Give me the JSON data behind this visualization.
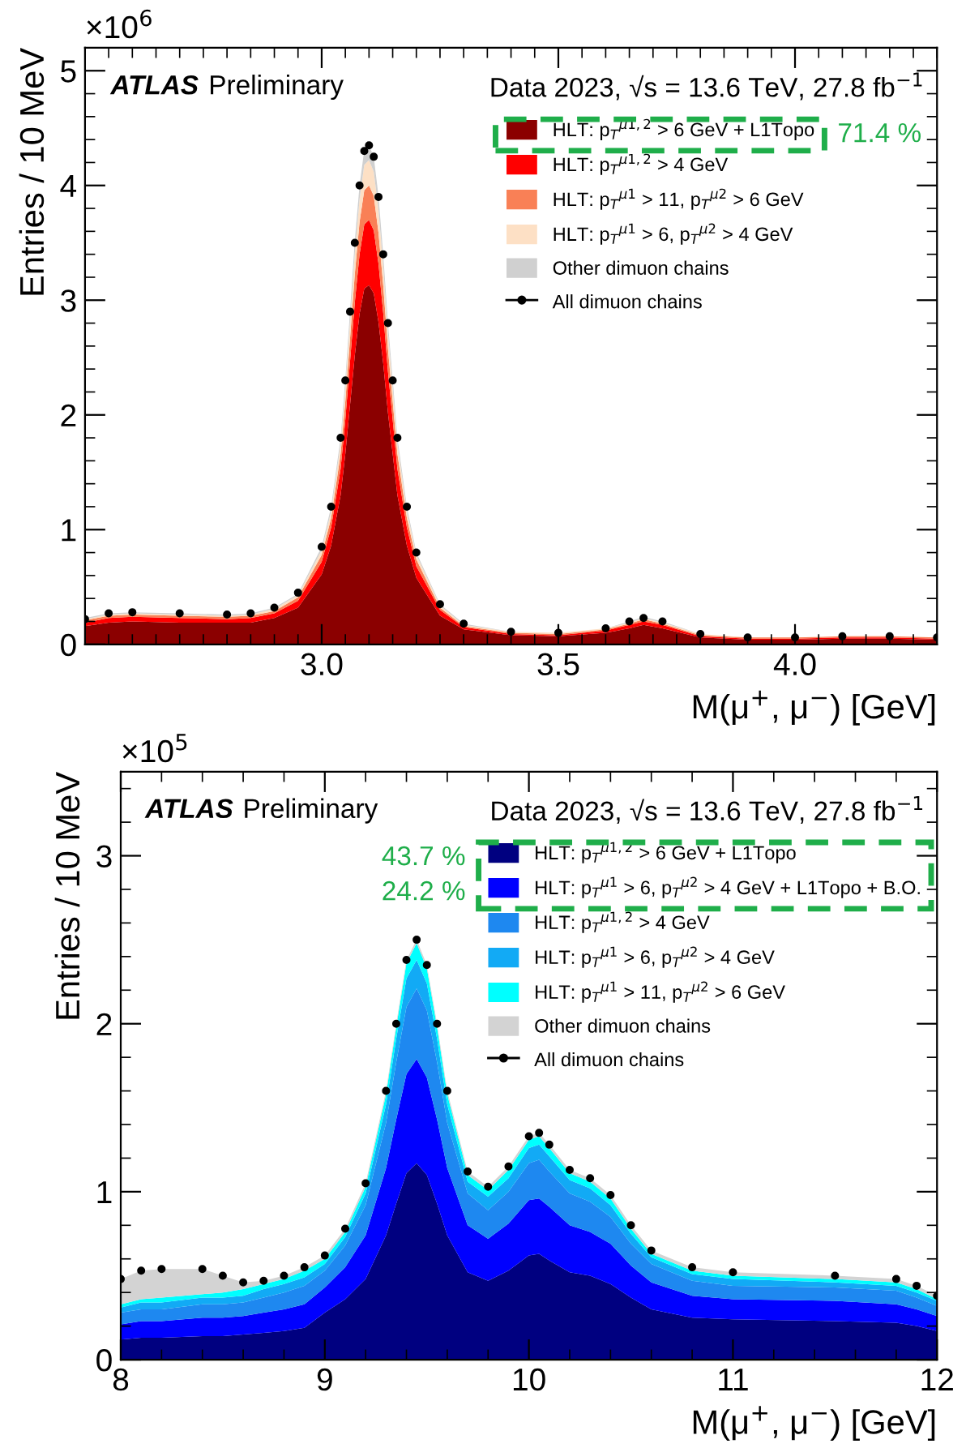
{
  "chart_data": [
    {
      "type": "area",
      "stacked": true,
      "xlabel": "M(μ$^{+}$, μ$^{−}$) [GeV]",
      "ylabel": "Entries / 10 MeV",
      "legend": "top right",
      "grid": false,
      "annotations": [
        "ATLAS",
        "Preliminary",
        "Data 2023, √s = 13.6 TeV, 27.8 fb$^{−1}$",
        "×10$^{6}$",
        "71.4 %"
      ],
      "xlim": [
        2.5,
        4.3
      ],
      "xticks": [
        {
          "value": 3.0,
          "label": "3.0"
        },
        {
          "value": 3.5,
          "label": "3.5"
        },
        {
          "value": 4.0,
          "label": "4.0"
        }
      ],
      "ylim": [
        0,
        5.2
      ],
      "yticks": [
        0,
        1,
        2,
        3,
        4,
        5
      ],
      "x": [
        2.5,
        2.55,
        2.6,
        2.7,
        2.8,
        2.85,
        2.9,
        2.95,
        3.0,
        3.02,
        3.04,
        3.05,
        3.06,
        3.07,
        3.08,
        3.09,
        3.1,
        3.11,
        3.12,
        3.13,
        3.14,
        3.15,
        3.16,
        3.18,
        3.2,
        3.25,
        3.3,
        3.4,
        3.5,
        3.6,
        3.65,
        3.68,
        3.72,
        3.8,
        3.9,
        4.0,
        4.1,
        4.2,
        4.3
      ],
      "series": [
        {
          "name": "HLT: p$_{T}$$^{μ1,2}$ > 6 GeV + L1Topo",
          "color": "#8b0000",
          "values": [
            0.16,
            0.19,
            0.2,
            0.19,
            0.19,
            0.19,
            0.23,
            0.32,
            0.61,
            0.86,
            1.3,
            1.66,
            2.09,
            2.52,
            2.88,
            3.1,
            3.13,
            3.06,
            2.81,
            2.45,
            2.02,
            1.66,
            1.3,
            0.86,
            0.58,
            0.25,
            0.13,
            0.08,
            0.07,
            0.1,
            0.14,
            0.17,
            0.14,
            0.06,
            0.04,
            0.04,
            0.05,
            0.05,
            0.04
          ]
        },
        {
          "name": "HLT: p$_{T}$$^{μ1,2}$ > 4 GeV",
          "color": "#ff0000",
          "values": [
            0.03,
            0.04,
            0.04,
            0.04,
            0.03,
            0.04,
            0.04,
            0.06,
            0.11,
            0.16,
            0.23,
            0.3,
            0.38,
            0.46,
            0.52,
            0.56,
            0.57,
            0.55,
            0.51,
            0.44,
            0.36,
            0.3,
            0.23,
            0.16,
            0.1,
            0.05,
            0.02,
            0.01,
            0.01,
            0.02,
            0.03,
            0.03,
            0.03,
            0.01,
            0.01,
            0.01,
            0.01,
            0.01,
            0.01
          ]
        },
        {
          "name": "HLT: p$_{T}$$^{μ1}$ > 11, p$_{T}$$^{μ2}$ > 6 GeV",
          "color": "#f98056",
          "values": [
            0.02,
            0.02,
            0.02,
            0.02,
            0.02,
            0.02,
            0.02,
            0.03,
            0.06,
            0.08,
            0.13,
            0.16,
            0.2,
            0.25,
            0.28,
            0.3,
            0.3,
            0.3,
            0.27,
            0.24,
            0.2,
            0.16,
            0.13,
            0.08,
            0.06,
            0.02,
            0.01,
            0.01,
            0.01,
            0.01,
            0.01,
            0.02,
            0.01,
            0.01,
            0.01,
            0.01,
            0.01,
            0.01,
            0.01
          ]
        },
        {
          "name": "HLT: p$_{T}$$^{μ1}$ > 6, p$_{T}$$^{μ2}$ > 4 GeV",
          "color": "#fde0c5",
          "values": [
            0.01,
            0.01,
            0.01,
            0.01,
            0.01,
            0.01,
            0.02,
            0.02,
            0.04,
            0.06,
            0.09,
            0.12,
            0.15,
            0.18,
            0.2,
            0.22,
            0.22,
            0.21,
            0.2,
            0.17,
            0.14,
            0.12,
            0.09,
            0.06,
            0.04,
            0.02,
            0.01,
            0.01,
            0.01,
            0.01,
            0.01,
            0.01,
            0.01,
            0.01,
            0,
            0,
            0,
            0,
            0
          ]
        },
        {
          "name": "Other dimuon chains",
          "color": "#d0d0d0",
          "values": [
            0.01,
            0.01,
            0.01,
            0.01,
            0.01,
            0.01,
            0.01,
            0.01,
            0.03,
            0.04,
            0.05,
            0.07,
            0.09,
            0.11,
            0.12,
            0.13,
            0.13,
            0.13,
            0.12,
            0.1,
            0.08,
            0.07,
            0.05,
            0.04,
            0.02,
            0.01,
            0.01,
            0,
            0,
            0,
            0.01,
            0.01,
            0.01,
            0,
            0,
            0,
            0,
            0,
            0
          ]
        },
        {
          "name": "All dimuon chains",
          "type": "scatter",
          "marker": "circle",
          "color": "#000000",
          "values": [
            0.22,
            0.27,
            0.28,
            0.27,
            0.26,
            0.27,
            0.32,
            0.45,
            0.85,
            1.2,
            1.8,
            2.3,
            2.9,
            3.5,
            4.0,
            4.3,
            4.35,
            4.25,
            3.9,
            3.4,
            2.8,
            2.3,
            1.8,
            1.2,
            0.8,
            0.35,
            0.18,
            0.11,
            0.1,
            0.14,
            0.2,
            0.23,
            0.2,
            0.09,
            0.06,
            0.06,
            0.07,
            0.07,
            0.06
          ]
        }
      ]
    },
    {
      "type": "area",
      "stacked": true,
      "xlabel": "M(μ$^{+}$, μ$^{−}$) [GeV]",
      "ylabel": "Entries / 10 MeV",
      "legend": "top right",
      "grid": false,
      "annotations": [
        "ATLAS",
        "Preliminary",
        "Data 2023, √s = 13.6 TeV, 27.8 fb$^{−1}$",
        "×10$^{5}$",
        "43.7 %",
        "24.2 %"
      ],
      "xlim": [
        8,
        12
      ],
      "xticks": [
        8,
        9,
        10,
        11,
        12
      ],
      "ylim": [
        0,
        3.5
      ],
      "yticks": [
        0,
        1,
        2,
        3
      ],
      "x": [
        8.0,
        8.1,
        8.2,
        8.4,
        8.5,
        8.6,
        8.7,
        8.8,
        8.9,
        9.0,
        9.1,
        9.2,
        9.3,
        9.35,
        9.4,
        9.45,
        9.5,
        9.55,
        9.6,
        9.7,
        9.8,
        9.9,
        10.0,
        10.05,
        10.1,
        10.2,
        10.3,
        10.4,
        10.5,
        10.6,
        10.8,
        11.0,
        11.5,
        11.8,
        11.9,
        12.0
      ],
      "series": [
        {
          "name": "HLT: p$_{T}$$^{μ1,2}$ > 6 GeV + L1Topo",
          "color": "#000080",
          "values": [
            0.12,
            0.13,
            0.13,
            0.14,
            0.14,
            0.15,
            0.16,
            0.17,
            0.19,
            0.28,
            0.36,
            0.48,
            0.74,
            0.93,
            1.11,
            1.17,
            1.1,
            0.93,
            0.74,
            0.52,
            0.47,
            0.53,
            0.62,
            0.63,
            0.59,
            0.52,
            0.5,
            0.45,
            0.37,
            0.3,
            0.25,
            0.24,
            0.23,
            0.22,
            0.2,
            0.17
          ]
        },
        {
          "name": "HLT: p$_{T}$$^{μ1}$ > 6, p$_{T}$$^{μ2}$ > 4 GeV + L1Topo + B.O.",
          "color": "#0000ff",
          "values": [
            0.09,
            0.1,
            0.1,
            0.11,
            0.11,
            0.11,
            0.12,
            0.13,
            0.14,
            0.15,
            0.19,
            0.26,
            0.4,
            0.5,
            0.59,
            0.62,
            0.58,
            0.5,
            0.4,
            0.28,
            0.25,
            0.28,
            0.33,
            0.33,
            0.32,
            0.28,
            0.26,
            0.24,
            0.19,
            0.16,
            0.13,
            0.12,
            0.12,
            0.11,
            0.1,
            0.09
          ]
        },
        {
          "name": "HLT: p$_{T}$$^{μ1,2}$ > 4 GeV",
          "color": "#1e88f0",
          "values": [
            0.07,
            0.07,
            0.07,
            0.08,
            0.08,
            0.08,
            0.09,
            0.1,
            0.11,
            0.1,
            0.13,
            0.18,
            0.27,
            0.34,
            0.4,
            0.42,
            0.4,
            0.34,
            0.27,
            0.19,
            0.17,
            0.19,
            0.22,
            0.23,
            0.21,
            0.19,
            0.18,
            0.16,
            0.13,
            0.11,
            0.09,
            0.08,
            0.08,
            0.08,
            0.07,
            0.06
          ]
        },
        {
          "name": "HLT: p$_{T}$$^{μ1}$ > 6, p$_{T}$$^{μ2}$ > 4 GeV",
          "color": "#12aaf5",
          "values": [
            0.03,
            0.04,
            0.04,
            0.04,
            0.04,
            0.04,
            0.05,
            0.05,
            0.05,
            0.04,
            0.05,
            0.07,
            0.11,
            0.14,
            0.17,
            0.17,
            0.16,
            0.14,
            0.11,
            0.07,
            0.08,
            0.08,
            0.09,
            0.09,
            0.09,
            0.08,
            0.08,
            0.07,
            0.06,
            0.04,
            0.04,
            0.04,
            0.03,
            0.03,
            0.03,
            0.03
          ]
        },
        {
          "name": "HLT: p$_{T}$$^{μ1}$ > 11, p$_{T}$$^{μ2}$ > 6 GeV",
          "color": "#00ffff",
          "values": [
            0.02,
            0.02,
            0.03,
            0.02,
            0.03,
            0.04,
            0.03,
            0.03,
            0.04,
            0.03,
            0.03,
            0.04,
            0.06,
            0.07,
            0.09,
            0.1,
            0.09,
            0.07,
            0.06,
            0.04,
            0.04,
            0.05,
            0.05,
            0.05,
            0.05,
            0.04,
            0.04,
            0.04,
            0.03,
            0.02,
            0.02,
            0.02,
            0.02,
            0.02,
            0.02,
            0.01
          ]
        },
        {
          "name": "Other dimuon chains",
          "color": "#d3d3d3",
          "values": [
            0.15,
            0.17,
            0.17,
            0.15,
            0.1,
            0.04,
            0.02,
            0.02,
            0.02,
            0.02,
            0.02,
            0.02,
            0.02,
            0.02,
            0.02,
            0.02,
            0.02,
            0.02,
            0.02,
            0.02,
            0.02,
            0.02,
            0.02,
            0.02,
            0.02,
            0.02,
            0.02,
            0.02,
            0.02,
            0.02,
            0.02,
            0.02,
            0.02,
            0.02,
            0.02,
            0.02
          ]
        },
        {
          "name": "All dimuon chains",
          "type": "scatter",
          "marker": "circle",
          "color": "#000000",
          "values": [
            0.48,
            0.53,
            0.54,
            0.54,
            0.5,
            0.46,
            0.47,
            0.5,
            0.55,
            0.62,
            0.78,
            1.05,
            1.6,
            2.0,
            2.38,
            2.5,
            2.35,
            2.0,
            1.6,
            1.12,
            1.03,
            1.15,
            1.33,
            1.35,
            1.28,
            1.13,
            1.08,
            0.98,
            0.8,
            0.65,
            0.55,
            0.52,
            0.5,
            0.48,
            0.44,
            0.38
          ]
        }
      ]
    }
  ]
}
